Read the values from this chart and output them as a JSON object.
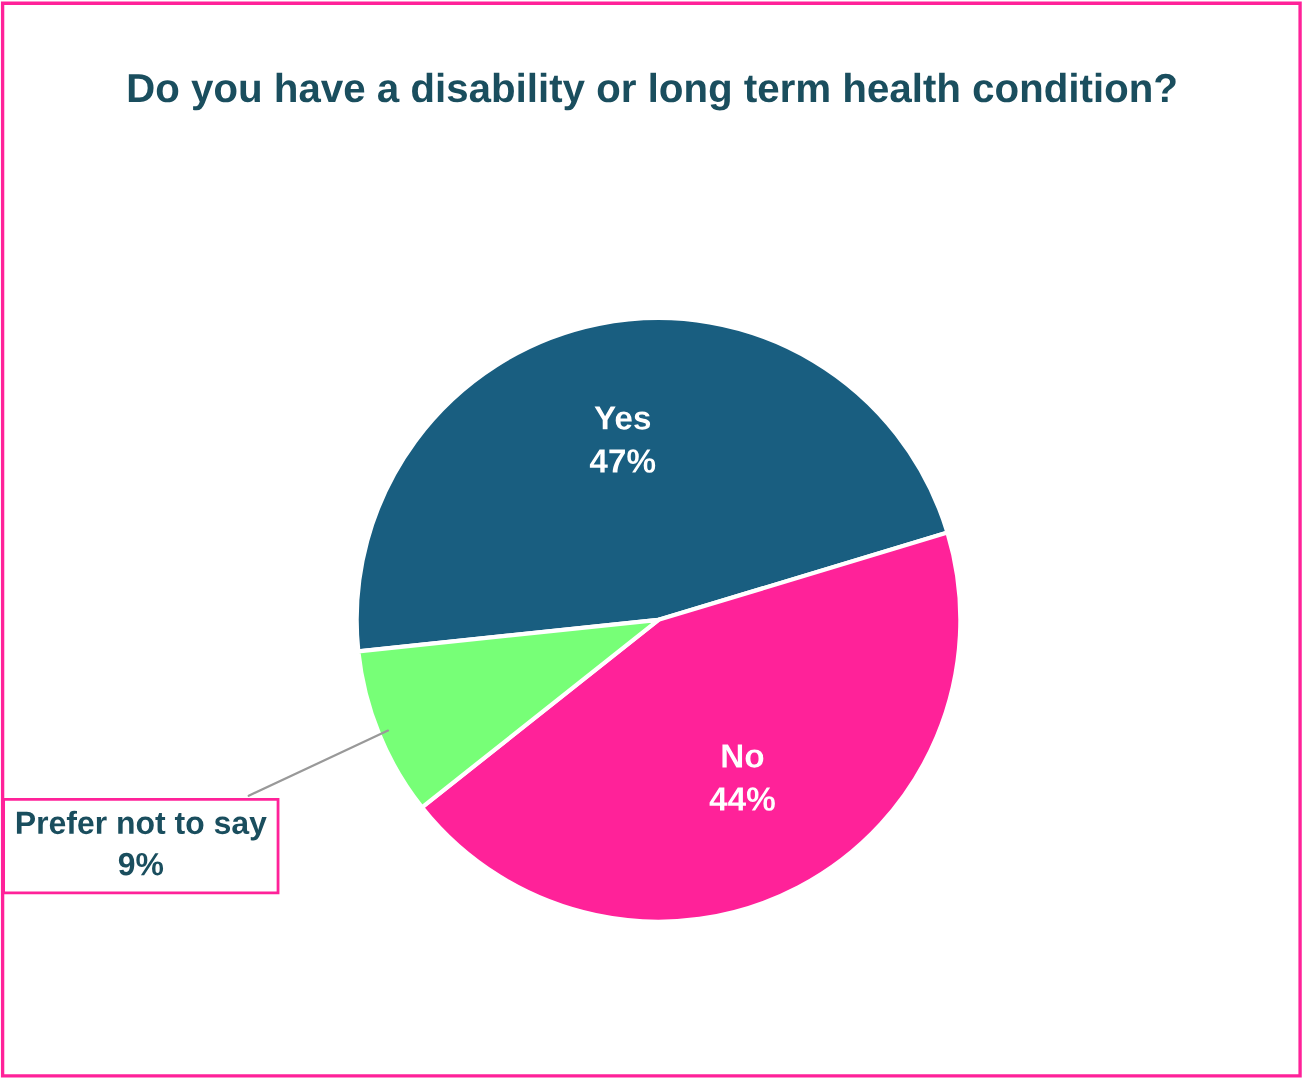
{
  "chart_data": {
    "type": "pie",
    "title": "Do you have a disability or long term health condition?",
    "categories": [
      "Yes",
      "No",
      "Prefer not to say"
    ],
    "values": [
      47,
      44,
      9
    ],
    "value_labels": [
      "47%",
      "44%",
      "9%"
    ],
    "colors": [
      "#195e80",
      "#ff2299",
      "#77ff77"
    ],
    "legend": false
  }
}
